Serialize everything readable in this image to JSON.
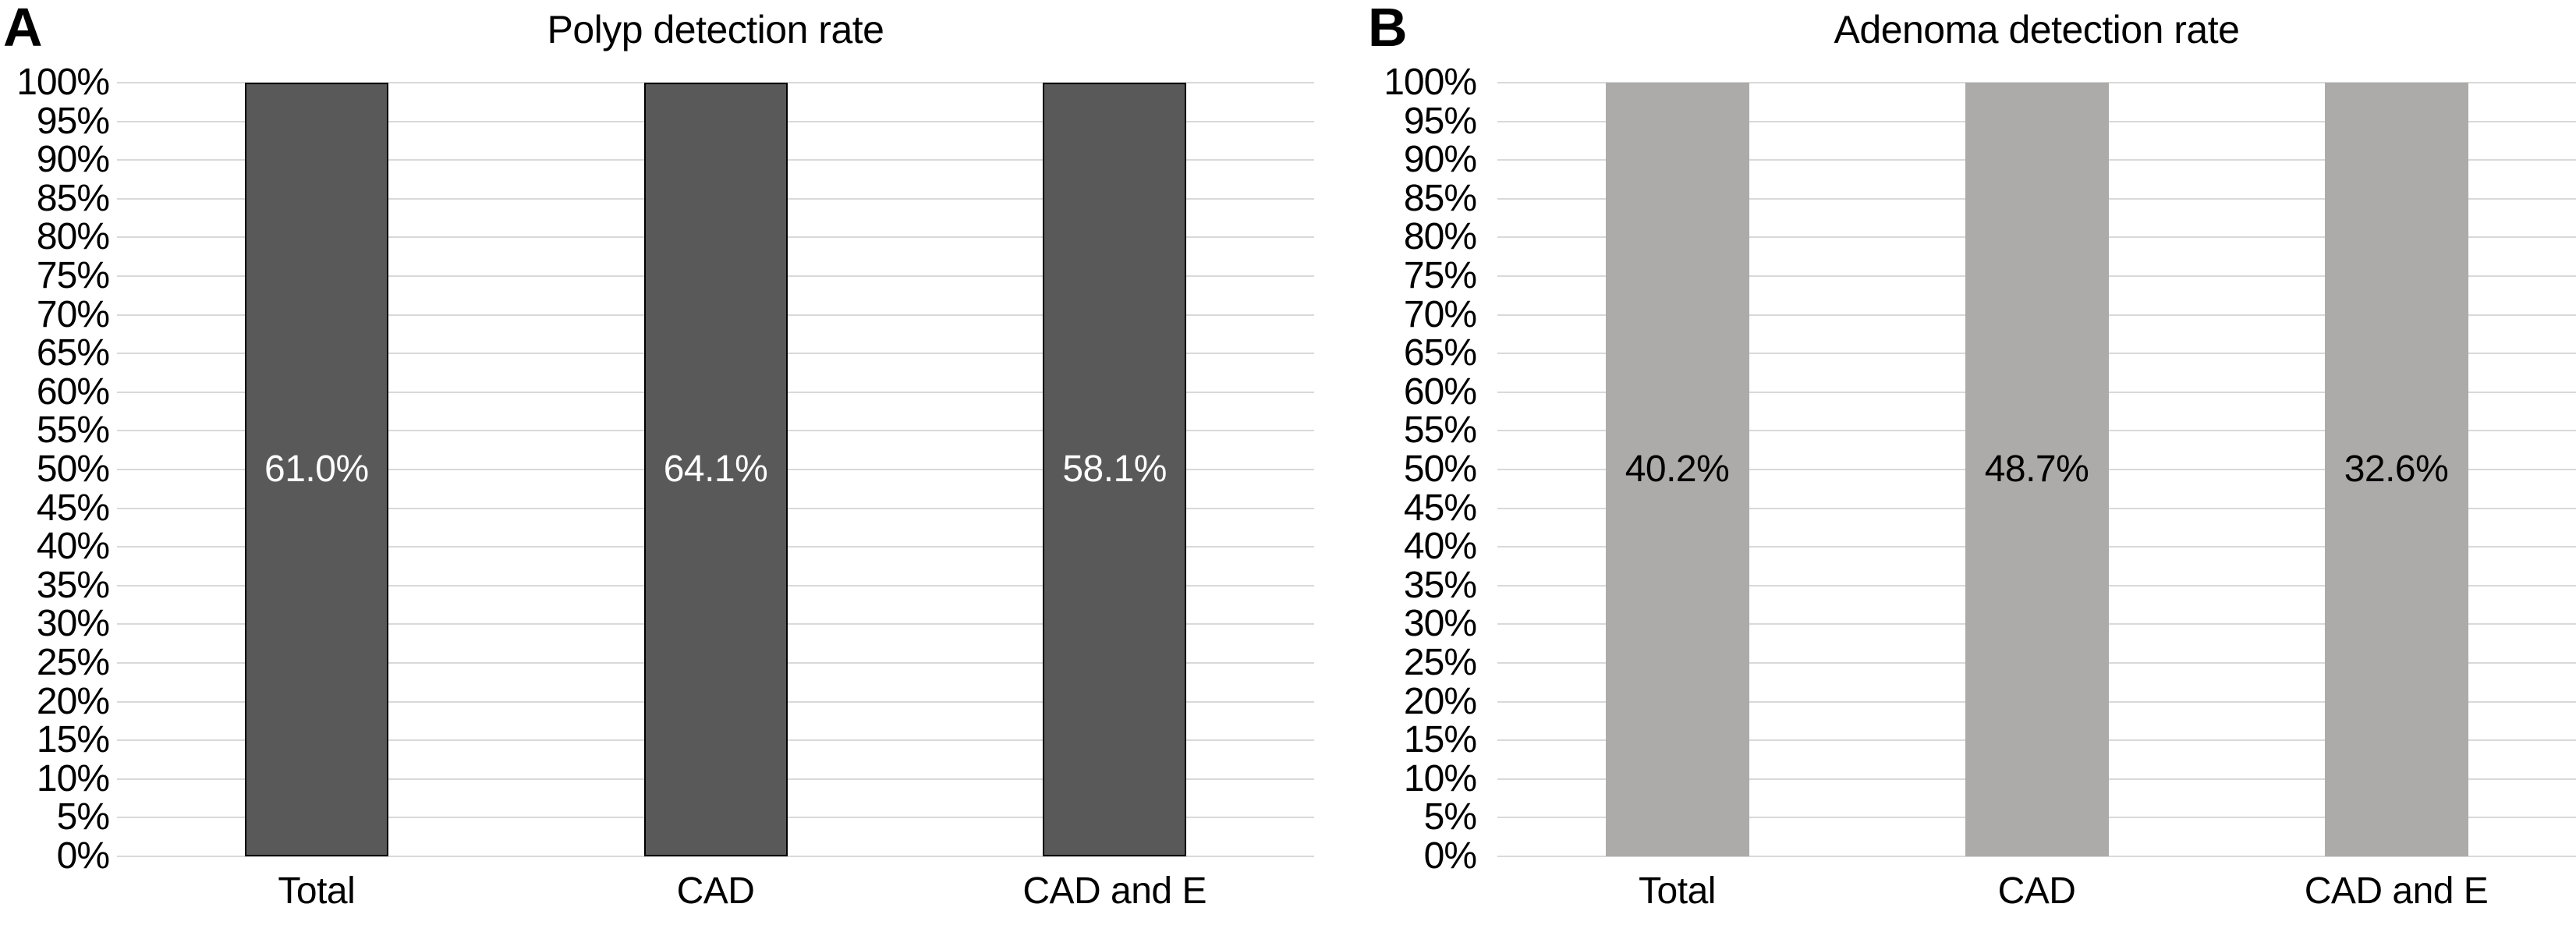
{
  "figure": {
    "description": "Two-panel bar chart figure",
    "background": "#FFFFFF"
  },
  "colors": {
    "background": "#FFFFFF",
    "grid": "#D9D9D9",
    "axis_text": "#000000",
    "panel_a_bar_fill": "#595959",
    "panel_a_bar_border": "#000000",
    "panel_a_data_label": "#FFFFFF",
    "panel_b_bar_fill": "#ADAAAA",
    "panel_b_data_label": "#000000"
  },
  "chart_data": [
    {
      "type": "bar",
      "panel_label": "A",
      "title": "Polyp detection rate",
      "categories": [
        "Total",
        "CAD",
        "CAD and E"
      ],
      "values": [
        61.0,
        64.1,
        58.1
      ],
      "data_labels": [
        "61.0%",
        "64.1%",
        "58.1%"
      ],
      "data_label_position": "center",
      "bars_drawn_full_height": true,
      "xlabel": "",
      "ylabel": "",
      "ylim": [
        0,
        100
      ],
      "y_tick_step": 5,
      "y_tick_labels": [
        "100%",
        "95%",
        "90%",
        "85%",
        "80%",
        "75%",
        "70%",
        "65%",
        "60%",
        "55%",
        "50%",
        "45%",
        "40%",
        "35%",
        "30%",
        "25%",
        "20%",
        "15%",
        "10%",
        "5%",
        "0%"
      ],
      "grid": true,
      "legend": false,
      "bar_fill": "#595959",
      "bar_border": "#000000",
      "data_label_color": "#FFFFFF"
    },
    {
      "type": "bar",
      "panel_label": "B",
      "title": "Adenoma detection rate",
      "categories": [
        "Total",
        "CAD",
        "CAD and E"
      ],
      "values": [
        40.2,
        48.7,
        32.6
      ],
      "data_labels": [
        "40.2%",
        "48.7%",
        "32.6%"
      ],
      "data_label_position": "center",
      "bars_drawn_full_height": true,
      "xlabel": "",
      "ylabel": "",
      "ylim": [
        0,
        100
      ],
      "y_tick_step": 5,
      "y_tick_labels": [
        "100%",
        "95%",
        "90%",
        "85%",
        "80%",
        "75%",
        "70%",
        "65%",
        "60%",
        "55%",
        "50%",
        "45%",
        "40%",
        "35%",
        "30%",
        "25%",
        "20%",
        "15%",
        "10%",
        "5%",
        "0%"
      ],
      "grid": true,
      "legend": false,
      "bar_fill": "#ADAAAA",
      "bar_border": null,
      "data_label_color": "#000000"
    }
  ]
}
